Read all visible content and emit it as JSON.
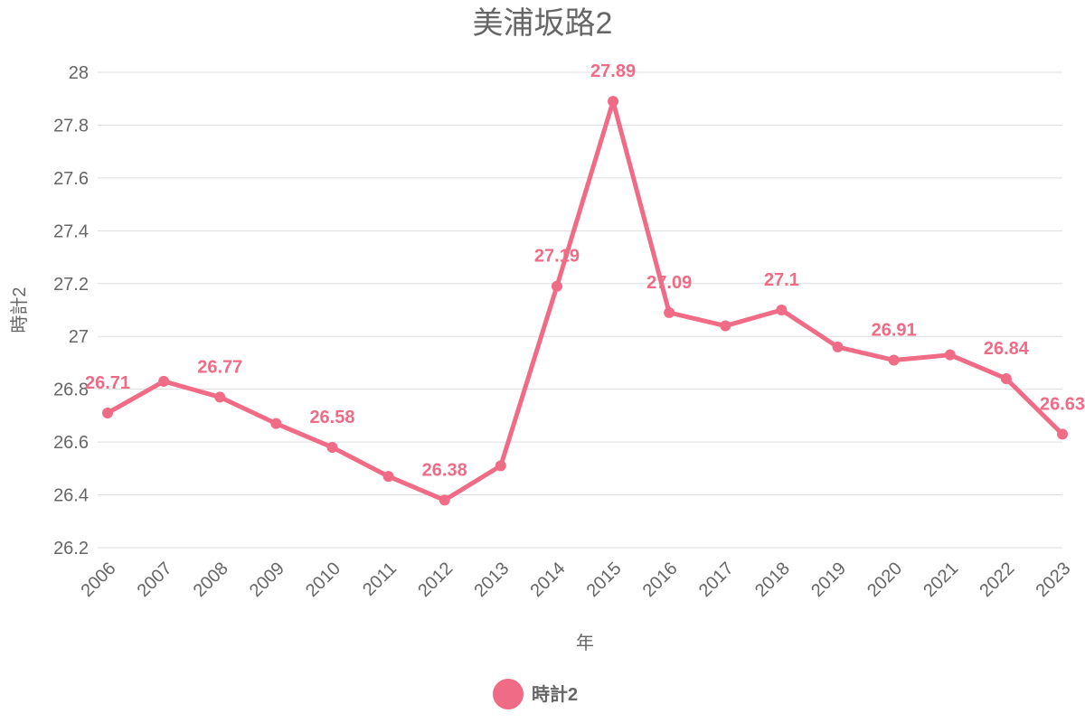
{
  "chart_data": {
    "type": "line",
    "title": "美浦坂路2",
    "xlabel": "年",
    "ylabel": "時計2",
    "ylim": [
      26.2,
      28
    ],
    "yticks": [
      26.2,
      26.4,
      26.6,
      26.8,
      27,
      27.2,
      27.4,
      27.6,
      27.8,
      28
    ],
    "grid": true,
    "legend_position": "bottom",
    "color": "#f06b85",
    "x": [
      "2006",
      "2007",
      "2008",
      "2009",
      "2010",
      "2011",
      "2012",
      "2013",
      "2014",
      "2015",
      "2016",
      "2017",
      "2018",
      "2019",
      "2020",
      "2021",
      "2022",
      "2023"
    ],
    "series": [
      {
        "name": "時計2",
        "values": [
          26.71,
          26.83,
          26.77,
          26.67,
          26.58,
          26.47,
          26.38,
          26.51,
          27.19,
          27.89,
          27.09,
          27.04,
          27.1,
          26.96,
          26.91,
          26.93,
          26.84,
          26.63
        ],
        "labeled": [
          true,
          false,
          true,
          false,
          true,
          false,
          true,
          false,
          true,
          true,
          true,
          false,
          true,
          false,
          true,
          false,
          true,
          true
        ]
      }
    ]
  }
}
